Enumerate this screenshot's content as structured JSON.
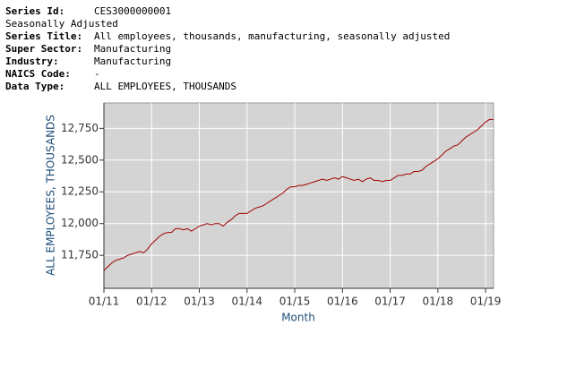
{
  "header": {
    "rows": [
      {
        "label": "Series Id:",
        "value": "CES3000000001"
      },
      {
        "text": "Seasonally Adjusted"
      },
      {
        "label": "Series Title:",
        "value": "All employees, thousands, manufacturing, seasonally adjusted"
      },
      {
        "label": "Super Sector:",
        "value": "Manufacturing"
      },
      {
        "label": "Industry:",
        "value": "Manufacturing"
      },
      {
        "label": "NAICS Code:",
        "value": "-"
      },
      {
        "label": "Data Type:",
        "value": "ALL EMPLOYEES, THOUSANDS"
      }
    ]
  },
  "chart_data": {
    "type": "line",
    "x_label": "Month",
    "y_label": "ALL EMPLOYEES, THOUSANDS",
    "x": [
      "2011-01",
      "2011-02",
      "2011-03",
      "2011-04",
      "2011-05",
      "2011-06",
      "2011-07",
      "2011-08",
      "2011-09",
      "2011-10",
      "2011-11",
      "2011-12",
      "2012-01",
      "2012-02",
      "2012-03",
      "2012-04",
      "2012-05",
      "2012-06",
      "2012-07",
      "2012-08",
      "2012-09",
      "2012-10",
      "2012-11",
      "2012-12",
      "2013-01",
      "2013-02",
      "2013-03",
      "2013-04",
      "2013-05",
      "2013-06",
      "2013-07",
      "2013-08",
      "2013-09",
      "2013-10",
      "2013-11",
      "2013-12",
      "2014-01",
      "2014-02",
      "2014-03",
      "2014-04",
      "2014-05",
      "2014-06",
      "2014-07",
      "2014-08",
      "2014-09",
      "2014-10",
      "2014-11",
      "2014-12",
      "2015-01",
      "2015-02",
      "2015-03",
      "2015-04",
      "2015-05",
      "2015-06",
      "2015-07",
      "2015-08",
      "2015-09",
      "2015-10",
      "2015-11",
      "2015-12",
      "2016-01",
      "2016-02",
      "2016-03",
      "2016-04",
      "2016-05",
      "2016-06",
      "2016-07",
      "2016-08",
      "2016-09",
      "2016-10",
      "2016-11",
      "2016-12",
      "2017-01",
      "2017-02",
      "2017-03",
      "2017-04",
      "2017-05",
      "2017-06",
      "2017-07",
      "2017-08",
      "2017-09",
      "2017-10",
      "2017-11",
      "2017-12",
      "2018-01",
      "2018-02",
      "2018-03",
      "2018-04",
      "2018-05",
      "2018-06",
      "2018-07",
      "2018-08",
      "2018-09",
      "2018-10",
      "2018-11",
      "2018-12",
      "2019-01",
      "2019-02",
      "2019-03"
    ],
    "series": [
      {
        "color": "#a00000",
        "values": [
          11630,
          11660,
          11690,
          11710,
          11720,
          11730,
          11750,
          11760,
          11770,
          11780,
          11770,
          11800,
          11840,
          11870,
          11900,
          11920,
          11930,
          11930,
          11960,
          11960,
          11950,
          11960,
          11940,
          11960,
          11980,
          11990,
          12000,
          11990,
          12000,
          12000,
          11980,
          12010,
          12030,
          12060,
          12080,
          12080,
          12080,
          12100,
          12120,
          12130,
          12140,
          12160,
          12180,
          12200,
          12220,
          12240,
          12270,
          12290,
          12290,
          12300,
          12300,
          12310,
          12320,
          12330,
          12340,
          12350,
          12340,
          12350,
          12360,
          12350,
          12370,
          12360,
          12350,
          12340,
          12350,
          12330,
          12350,
          12360,
          12340,
          12340,
          12330,
          12340,
          12340,
          12360,
          12380,
          12380,
          12390,
          12390,
          12410,
          12410,
          12420,
          12450,
          12470,
          12490,
          12510,
          12540,
          12570,
          12590,
          12610,
          12620,
          12650,
          12680,
          12700,
          12720,
          12740,
          12770,
          12800,
          12820,
          12820
        ]
      }
    ],
    "xlim": [
      "2011-01",
      "2019-03"
    ],
    "xticks": [
      {
        "value": "2011-01",
        "label": "01/11"
      },
      {
        "value": "2012-01",
        "label": "01/12"
      },
      {
        "value": "2013-01",
        "label": "01/13"
      },
      {
        "value": "2014-01",
        "label": "01/14"
      },
      {
        "value": "2015-01",
        "label": "01/15"
      },
      {
        "value": "2016-01",
        "label": "01/16"
      },
      {
        "value": "2017-01",
        "label": "01/17"
      },
      {
        "value": "2018-01",
        "label": "01/18"
      },
      {
        "value": "2019-01",
        "label": "01/19"
      }
    ],
    "ylim": [
      11490,
      12950
    ],
    "yticks": [
      {
        "value": 11750,
        "label": "11,750"
      },
      {
        "value": 12000,
        "label": "12,000"
      },
      {
        "value": 12250,
        "label": "12,250"
      },
      {
        "value": 12500,
        "label": "12,500"
      },
      {
        "value": 12750,
        "label": "12,750"
      }
    ],
    "grid": true,
    "background": "#d4d4d4"
  }
}
